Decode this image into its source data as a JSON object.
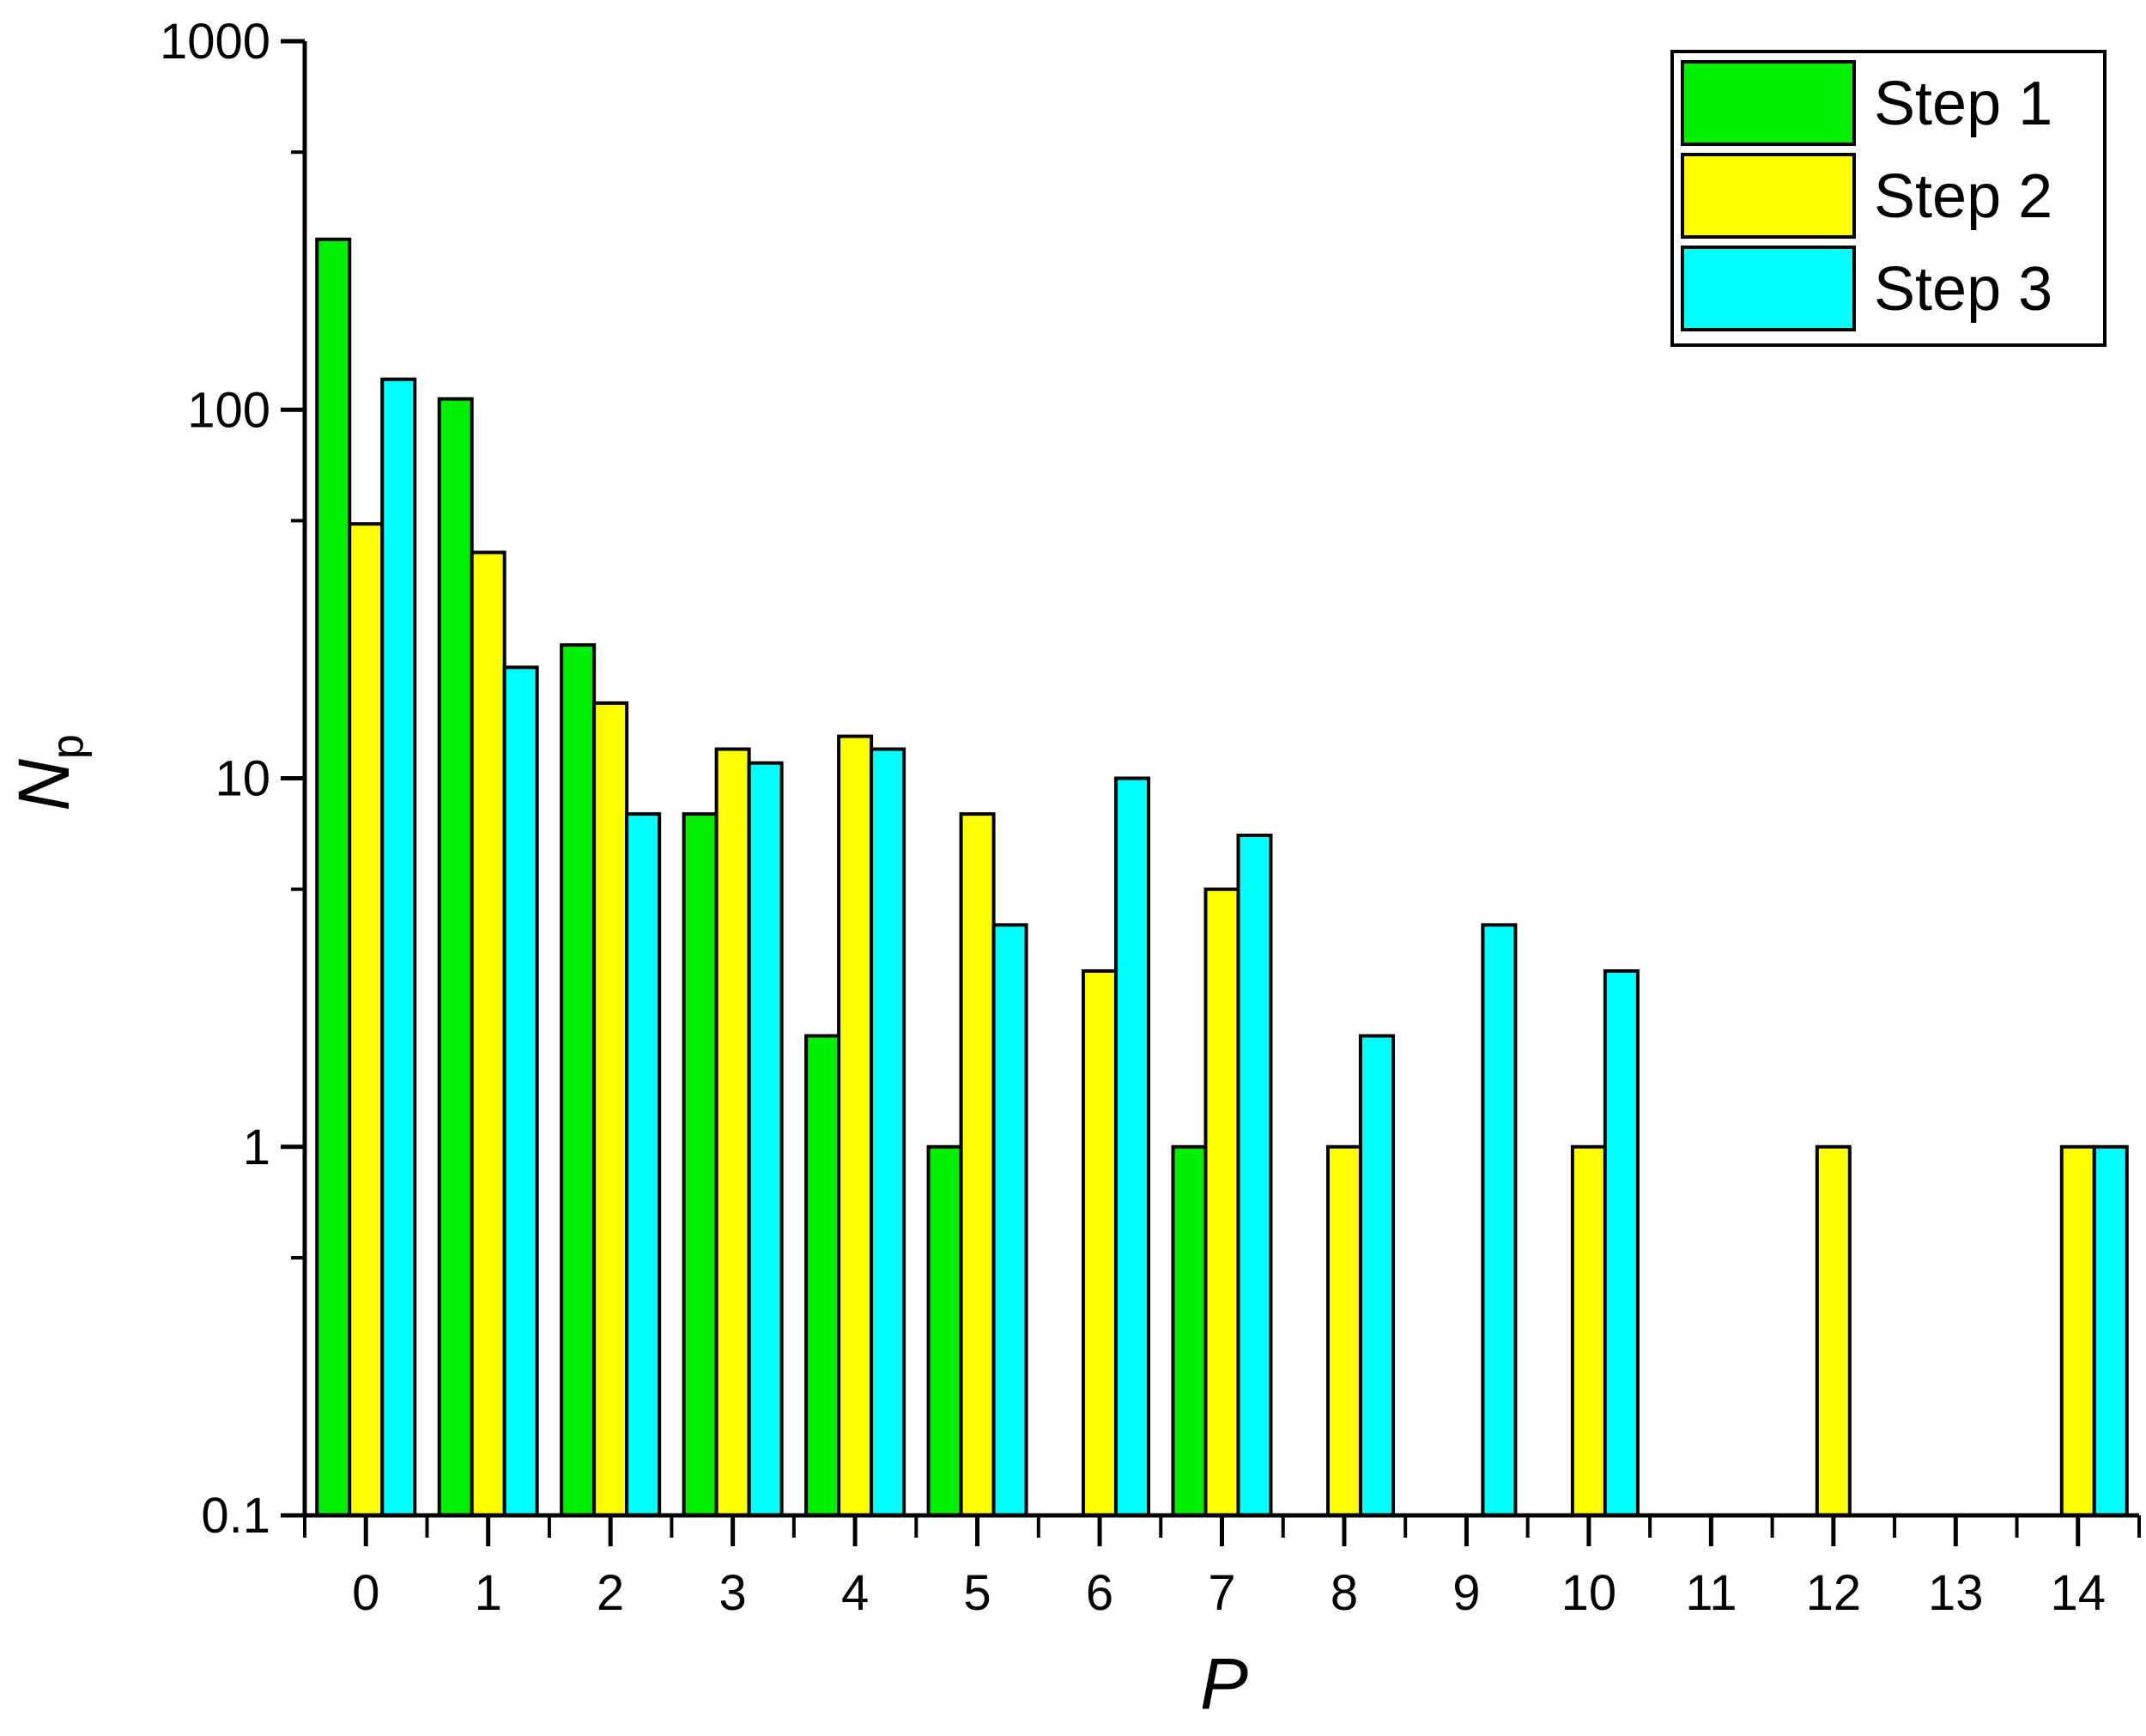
{
  "chart_data": {
    "type": "bar",
    "title": "",
    "xlabel": "P",
    "ylabel": "N",
    "ylabel_subscript": "p",
    "yscale": "log",
    "ylim": [
      0.1,
      1000
    ],
    "yticks": [
      0.1,
      1,
      10,
      100,
      1000
    ],
    "ytick_labels": [
      "0.1",
      "1",
      "10",
      "100",
      "1000"
    ],
    "categories": [
      "0",
      "1",
      "2",
      "3",
      "4",
      "5",
      "6",
      "7",
      "8",
      "9",
      "10",
      "11",
      "12",
      "13",
      "14"
    ],
    "series": [
      {
        "name": "Step 1",
        "color": "#00ee00",
        "values": [
          290,
          107,
          23,
          8,
          2,
          1,
          null,
          1,
          null,
          null,
          null,
          null,
          null,
          null,
          null
        ]
      },
      {
        "name": "Step 2",
        "color": "#ffff00",
        "values": [
          49,
          41,
          16,
          12,
          13,
          8,
          3,
          5,
          1,
          null,
          1,
          null,
          1,
          null,
          1
        ]
      },
      {
        "name": "Step 3",
        "color": "#00ffff",
        "values": [
          121,
          20,
          8,
          11,
          12,
          4,
          10,
          7,
          2,
          4,
          3,
          null,
          null,
          null,
          1
        ]
      }
    ],
    "legend": {
      "position": "top-right",
      "entries": [
        "Step 1",
        "Step 2",
        "Step 3"
      ]
    },
    "grid": false
  }
}
